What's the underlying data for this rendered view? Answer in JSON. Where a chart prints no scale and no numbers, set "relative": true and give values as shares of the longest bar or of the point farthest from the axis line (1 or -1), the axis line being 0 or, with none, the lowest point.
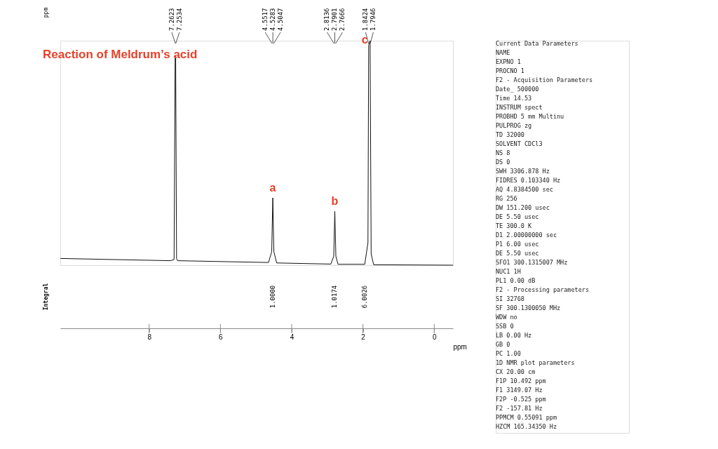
{
  "chart_data": [
    {
      "type": "line",
      "title": "Reaction of Meldrum’s acid",
      "xlabel": "ppm",
      "relative": true,
      "grid": false,
      "marker": "none",
      "line_style": "solid",
      "xlim": [
        10.492,
        -0.525
      ],
      "xticks": [
        8,
        6,
        4,
        2,
        0
      ],
      "x": [
        10.49,
        7.4,
        7.3,
        7.27,
        7.255,
        7.23,
        7.2,
        4.65,
        4.56,
        4.53,
        4.5,
        4.42,
        2.9,
        2.82,
        2.79,
        2.76,
        2.7,
        1.95,
        1.86,
        1.84,
        1.8,
        1.77,
        1.7,
        -0.525
      ],
      "series": [
        {
          "color": "#111111",
          "values": [
            0.03,
            0.02,
            0.025,
            0.93,
            0.93,
            0.03,
            0.02,
            0.012,
            0.06,
            0.3,
            0.06,
            0.01,
            0.005,
            0.04,
            0.24,
            0.04,
            0.004,
            0.004,
            0.1,
            0.98,
            1.0,
            0.05,
            0.002,
            0.0
          ]
        }
      ],
      "annotations": [
        "ppm",
        {
          "text": "7.2623",
          "x": 7.2623
        },
        {
          "text": "7.2534",
          "x": 7.2534
        },
        {
          "text": "4.5517",
          "x": 4.5517
        },
        {
          "text": "4.5283",
          "x": 4.5283
        },
        {
          "text": "4.5047",
          "x": 4.5047
        },
        {
          "text": "2.8136",
          "x": 2.8136
        },
        {
          "text": "2.7901",
          "x": 2.7901
        },
        {
          "text": "2.7666",
          "x": 2.7666
        },
        {
          "text": "1.8424",
          "x": 1.8424
        },
        {
          "text": "1.7946",
          "x": 1.7946
        },
        {
          "text": "a",
          "x": 4.53,
          "y": 0.3
        },
        {
          "text": "b",
          "x": 2.79,
          "y": 0.24
        },
        {
          "text": "c",
          "x": 1.95,
          "y": 0.96
        },
        "Integral",
        "1.0000",
        "1.0174",
        "6.0026"
      ]
    },
    {
      "type": "other",
      "annotations": [
        "Current Data Parameters",
        "NAME",
        "EXPNO 1",
        "PROCNO 1",
        "F2 - Acquisition Parameters",
        "Date_ 500000",
        "Time 14.53",
        "INSTRUM spect",
        "PROBHD 5 mm Multinu",
        "PULPROG zg",
        "TD 32000",
        "SOLVENT CDCl3",
        "NS 8",
        "DS 0",
        "SWH 3306.878 Hz",
        "FIDRES 0.103340 Hz",
        "AQ 4.8384500 sec",
        "RG 256",
        "DW 151.200 usec",
        "DE 5.50 usec",
        "TE 300.0 K",
        "D1 2.00000000 sec",
        "P1 6.00 usec",
        "DE 5.50 usec",
        "SFO1 300.1315007 MHz",
        "NUC1 1H",
        "PL1 0.00 dB",
        "F2 - Processing parameters",
        "SI 32768",
        "SF 300.1300050 MHz",
        "WDW no",
        "SSB 0",
        "LB 0.00 Hz",
        "GB 0",
        "PC 1.00",
        "1D NMR plot parameters",
        "CX 20.00 cm",
        "F1P 10.492 ppm",
        "F1 3149.07 Hz",
        "F2P -0.525 ppm",
        "F2 -157.81 Hz",
        "PPMCM 0.55091 ppm",
        "HZCM 165.34350 Hz"
      ]
    }
  ]
}
